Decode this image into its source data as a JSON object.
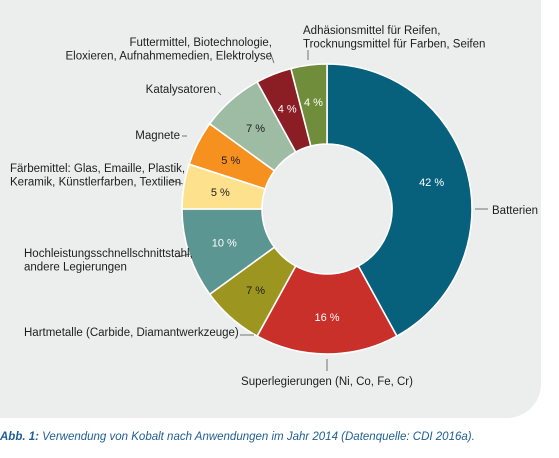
{
  "chart_data": {
    "type": "pie",
    "variant": "donut",
    "legend": "none",
    "slices": [
      {
        "label": "Batterien",
        "value": 42,
        "display": "42 %",
        "color": "#07607c"
      },
      {
        "label": "Superlegierungen (Ni, Co, Fe, Cr)",
        "value": 16,
        "display": "16 %",
        "color": "#c9302a"
      },
      {
        "label": "Hartmetalle (Carbide, Diamantwerkzeuge)",
        "value": 7,
        "display": "7 %",
        "color": "#9c951f"
      },
      {
        "label": "Hochleistungsschnellschnittstahl, andere Legierungen",
        "value": 10,
        "display": "10 %",
        "color": "#5b9692"
      },
      {
        "label": "Färbemittel: Glas, Emaille, Plastik, Keramik, Künstlerfarben, Textilien",
        "value": 5,
        "display": "5 %",
        "color": "#fde18c"
      },
      {
        "label": "Magnete",
        "value": 5,
        "display": "5 %",
        "color": "#f6901f"
      },
      {
        "label": "Katalysatoren",
        "value": 7,
        "display": "7 %",
        "color": "#9ebba3"
      },
      {
        "label": "Futtermittel, Biotechnologie, Eloxieren, Aufnahmemedien, Elektrolyse",
        "value": 4,
        "display": "4 %",
        "color": "#8b1d24"
      },
      {
        "label": "Adhäsionsmittel für Reifen, Trocknungsmittel für Farben, Seifen",
        "value": 4,
        "display": "4 %",
        "color": "#6f8d3a"
      }
    ]
  },
  "caption": {
    "prefix": "Abb. 1:",
    "text": " Verwendung von Kobalt nach Anwendungen im Jahr 2014 (Datenquelle: CDI 2016a)."
  }
}
